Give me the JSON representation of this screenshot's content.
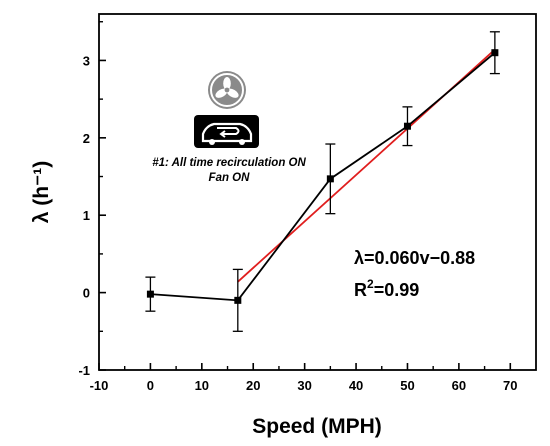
{
  "chart_data": {
    "type": "line",
    "title": "",
    "xlabel": "Speed (MPH)",
    "ylabel": "λ (h⁻¹)",
    "xlim": [
      -10,
      75
    ],
    "ylim": [
      -1,
      3.6
    ],
    "x_ticks": [
      -10,
      0,
      10,
      20,
      30,
      40,
      50,
      60,
      70
    ],
    "y_ticks": [
      -1,
      0,
      1,
      2,
      3
    ],
    "grid": false,
    "legend": "none",
    "series": [
      {
        "color": "#000000",
        "marker": "square",
        "x": [
          0,
          17,
          35,
          50,
          67
        ],
        "y": [
          -0.02,
          -0.1,
          1.47,
          2.15,
          3.1
        ],
        "error": [
          0.22,
          0.4,
          0.45,
          0.25,
          0.27
        ]
      }
    ],
    "fit": {
      "color": "#e01e1e",
      "slope": 0.06,
      "intercept": -0.88,
      "x_range": [
        17,
        67
      ],
      "equation": "λ=0.060v−0.88",
      "r2_base": "R",
      "r2_sup": "2",
      "r2_value": "=0.99"
    },
    "annotation": {
      "line1": "#1: All time recirculation ON",
      "line2": "Fan ON",
      "icons": [
        "fan-icon",
        "car-recirculation-icon"
      ]
    }
  }
}
